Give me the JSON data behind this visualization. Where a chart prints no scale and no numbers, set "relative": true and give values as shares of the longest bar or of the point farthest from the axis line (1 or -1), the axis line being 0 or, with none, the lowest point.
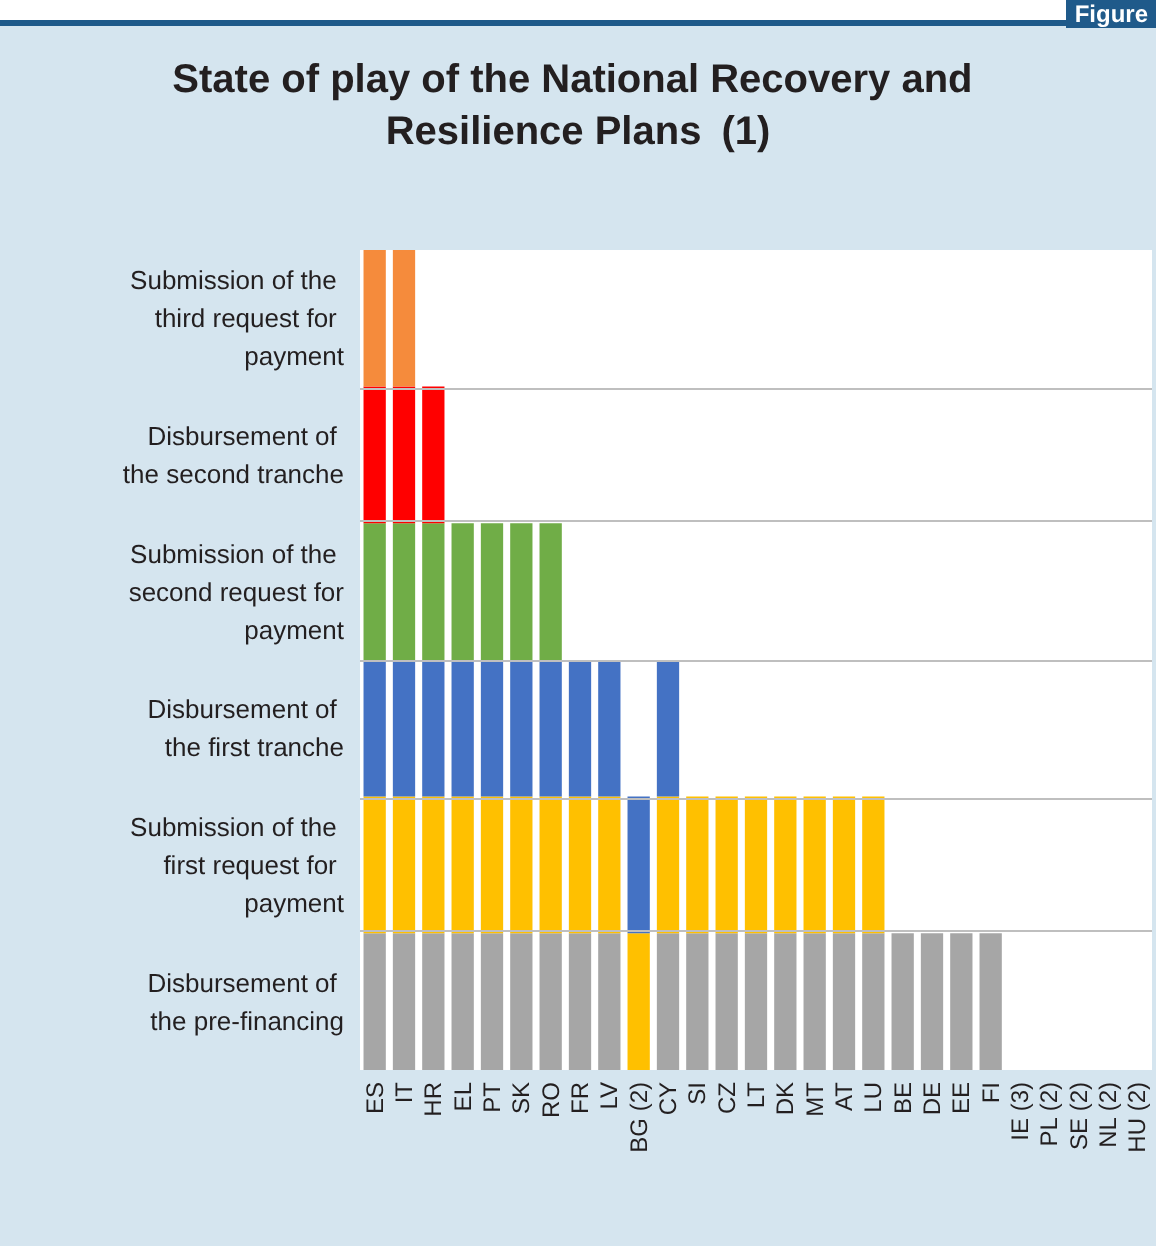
{
  "chart_data": {
    "type": "bar",
    "stacked": true,
    "relative": true,
    "title": "State of play of the National Recovery and Resilience Plans",
    "subtitle": "(1)",
    "annotations": [
      "Figure"
    ],
    "categories": [
      "ES",
      "IT",
      "HR",
      "EL",
      "PT",
      "SK",
      "RO",
      "FR",
      "LV",
      "BG (2)",
      "CY",
      "SI",
      "CZ",
      "LT",
      "DK",
      "MT",
      "AT",
      "LU",
      "BE",
      "DE",
      "EE",
      "FI",
      "IE (3)",
      "PL (2)",
      "SE (2)",
      "NL (2)",
      "HU (2)"
    ],
    "series": [
      {
        "name": "Disbursement of the pre-financing",
        "color": "#a6a6a6",
        "values": [
          0.1667,
          0.1667,
          0.1667,
          0.1667,
          0.1667,
          0.1667,
          0.1667,
          0.1667,
          0.1667,
          null,
          0.1667,
          0.1667,
          0.1667,
          0.1667,
          0.1667,
          0.1667,
          0.1667,
          0.1667,
          0.1667,
          0.1667,
          0.1667,
          0.1667,
          null,
          null,
          null,
          null,
          null
        ]
      },
      {
        "name": "Submission of the first request for payment",
        "color": "#ffc000",
        "values": [
          0.1667,
          0.1667,
          0.1667,
          0.1667,
          0.1667,
          0.1667,
          0.1667,
          0.1667,
          0.1667,
          0.1667,
          0.1667,
          0.1667,
          0.1667,
          0.1667,
          0.1667,
          0.1667,
          0.1667,
          0.1667,
          null,
          null,
          null,
          null,
          null,
          null,
          null,
          null,
          null
        ]
      },
      {
        "name": "Disbursement of the first tranche",
        "color": "#4472c4",
        "values": [
          0.1667,
          0.1667,
          0.1667,
          0.1667,
          0.1667,
          0.1667,
          0.1667,
          0.1667,
          0.1667,
          0.1667,
          0.1667,
          null,
          null,
          null,
          null,
          null,
          null,
          null,
          null,
          null,
          null,
          null,
          null,
          null,
          null,
          null,
          null
        ]
      },
      {
        "name": "Submission of the second request for payment",
        "color": "#70ad47",
        "values": [
          0.1667,
          0.1667,
          0.1667,
          0.1667,
          0.1667,
          0.1667,
          0.1667,
          null,
          null,
          null,
          null,
          null,
          null,
          null,
          null,
          null,
          null,
          null,
          null,
          null,
          null,
          null,
          null,
          null,
          null,
          null,
          null
        ]
      },
      {
        "name": "Disbursement of the second tranche",
        "color": "#ff0000",
        "values": [
          0.1667,
          0.1667,
          0.1667,
          null,
          null,
          null,
          null,
          null,
          null,
          null,
          null,
          null,
          null,
          null,
          null,
          null,
          null,
          null,
          null,
          null,
          null,
          null,
          null,
          null,
          null,
          null,
          null
        ]
      },
      {
        "name": "Submission of the third request for payment",
        "color": "#f58b3c",
        "values": [
          0.1665,
          0.1665,
          null,
          null,
          null,
          null,
          null,
          null,
          null,
          null,
          null,
          null,
          null,
          null,
          null,
          null,
          null,
          null,
          null,
          null,
          null,
          null,
          null,
          null,
          null,
          null,
          null
        ]
      }
    ],
    "ref_lines": [
      {
        "axis": "y",
        "value": 0.1667,
        "color": "#bfbfbf"
      },
      {
        "axis": "y",
        "value": 0.3334,
        "color": "#bfbfbf"
      },
      {
        "axis": "y",
        "value": 0.5001,
        "color": "#bfbfbf"
      },
      {
        "axis": "y",
        "value": 0.6668,
        "color": "#bfbfbf"
      },
      {
        "axis": "y",
        "value": 0.8335,
        "color": "#bfbfbf"
      }
    ],
    "legend": false
  }
}
